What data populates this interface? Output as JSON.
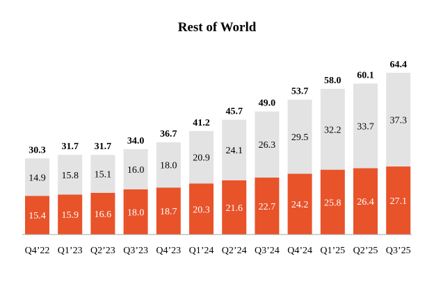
{
  "chart_data": {
    "type": "bar",
    "stacked": true,
    "title": "Rest of World",
    "xlabel": "",
    "ylabel": "",
    "grid": false,
    "legend": "none",
    "ylim": [
      0,
      70
    ],
    "categories": [
      "Q4’22",
      "Q1’23",
      "Q2’23",
      "Q3’23",
      "Q4’23",
      "Q1’24",
      "Q2’24",
      "Q3’24",
      "Q4’24",
      "Q1’25",
      "Q2’25",
      "Q3’25"
    ],
    "series": [
      {
        "name": "bottom",
        "color": "#e8532a",
        "label_color": "#ffffff",
        "values": [
          15.4,
          15.9,
          16.6,
          18.0,
          18.7,
          20.3,
          21.6,
          22.7,
          24.2,
          25.8,
          26.4,
          27.1
        ],
        "labels": [
          "15.4",
          "15.9",
          "16.6",
          "18.0",
          "18.7",
          "20.3",
          "21.6",
          "22.7",
          "24.2",
          "25.8",
          "26.4",
          "27.1"
        ]
      },
      {
        "name": "top",
        "color": "#e3e3e3",
        "label_color": "#000000",
        "values": [
          14.9,
          15.8,
          15.1,
          16.0,
          18.0,
          20.9,
          24.1,
          26.3,
          29.5,
          32.2,
          33.7,
          37.3
        ],
        "labels": [
          "14.9",
          "15.8",
          "15.1",
          "16.0",
          "18.0",
          "20.9",
          "24.1",
          "26.3",
          "29.5",
          "32.2",
          "33.7",
          "37.3"
        ]
      }
    ],
    "totals": [
      30.3,
      31.7,
      31.7,
      34.0,
      36.7,
      41.2,
      45.7,
      49.0,
      53.7,
      58.0,
      60.1,
      64.4
    ],
    "total_labels": [
      "30.3",
      "31.7",
      "31.7",
      "34.0",
      "36.7",
      "41.2",
      "45.7",
      "49.0",
      "53.7",
      "58.0",
      "60.1",
      "64.4"
    ]
  }
}
